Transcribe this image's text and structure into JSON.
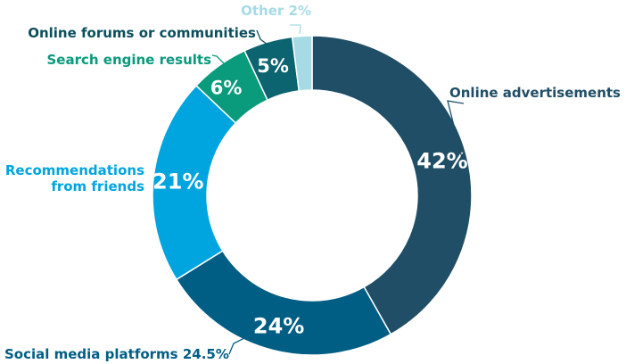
{
  "chart_data": {
    "type": "pie",
    "donut": true,
    "start_angle_deg": 0,
    "direction": "clockwise",
    "slices": [
      {
        "category": "Online advertisements",
        "category_label": "Online advertisements",
        "value": 42,
        "value_label": "42%",
        "color": "#1f4e66"
      },
      {
        "category": "Social media platforms",
        "category_label": "Social media platforms 24.5%",
        "value": 24.5,
        "value_label": "24%",
        "color": "#005e85"
      },
      {
        "category": "Recommendations from friends",
        "category_label": "Recommendations\nfrom friends",
        "value": 21,
        "value_label": "21%",
        "color": "#00a5e0"
      },
      {
        "category": "Search engine results",
        "category_label": "Search engine results",
        "value": 6,
        "value_label": "6%",
        "color": "#0a9a7c"
      },
      {
        "category": "Online forums or communities",
        "category_label": "Online forums or communities",
        "value": 5,
        "value_label": "5%",
        "color": "#0b6470"
      },
      {
        "category": "Other",
        "category_label": "Other 2%",
        "value": 2,
        "value_label": "",
        "color": "#a6dbe6"
      }
    ],
    "label_colors": {
      "Online advertisements": "#1f4e66",
      "Social media platforms": "#005e85",
      "Recommendations from friends": "#00a5e0",
      "Search engine results": "#0a9a7c",
      "Online forums or communities": "#0b4f5c",
      "Other": "#a6dbe6"
    },
    "legend": "none (direct labels)"
  }
}
